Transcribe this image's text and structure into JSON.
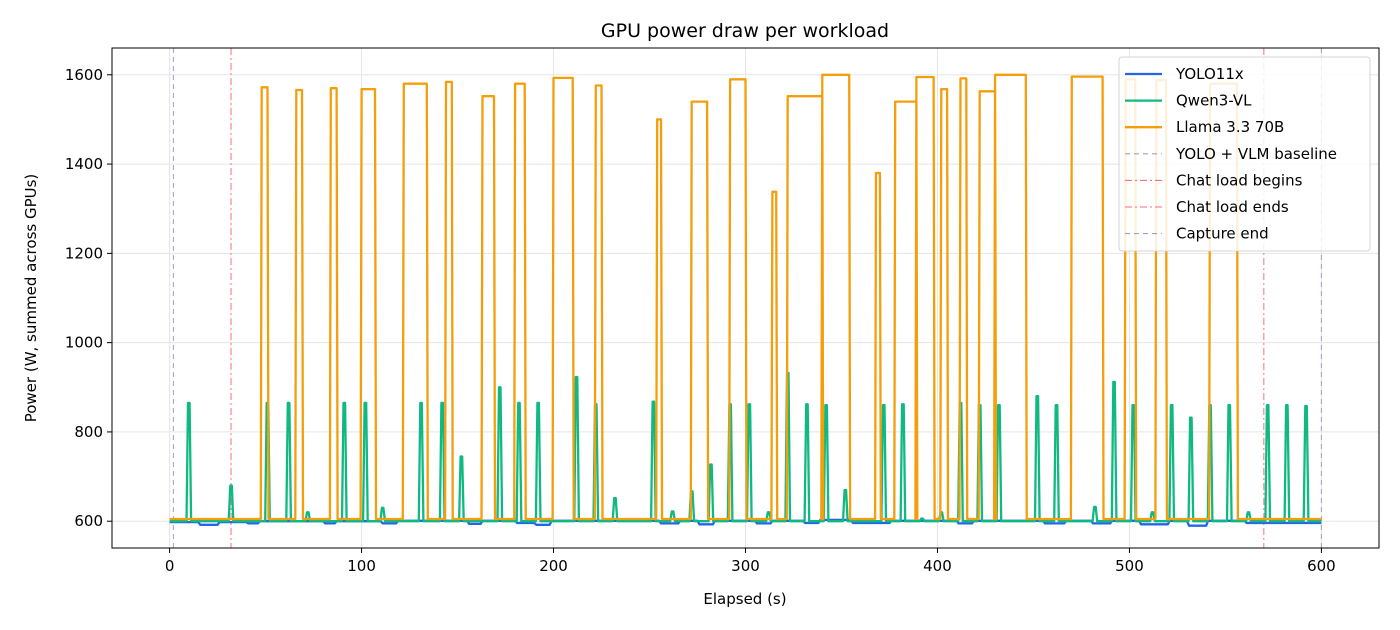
{
  "chart_data": {
    "type": "line",
    "title": "GPU power draw per workload",
    "xlabel": "Elapsed (s)",
    "ylabel": "Power (W, summed across GPUs)",
    "xlim": [
      -30,
      630
    ],
    "ylim": [
      540,
      1660
    ],
    "xticks": [
      0,
      100,
      200,
      300,
      400,
      500,
      600
    ],
    "yticks": [
      600,
      800,
      1000,
      1200,
      1400,
      1600
    ],
    "grid": true,
    "legend_position": "top-right",
    "series": [
      {
        "name": "YOLO11x",
        "color": "#2563eb",
        "baseline": 598,
        "points": [
          [
            0,
            598
          ],
          [
            15,
            598
          ],
          [
            16,
            592
          ],
          [
            25,
            592
          ],
          [
            26,
            598
          ],
          [
            40,
            598
          ],
          [
            41,
            595
          ],
          [
            46,
            595
          ],
          [
            47,
            600
          ],
          [
            80,
            600
          ],
          [
            81,
            595
          ],
          [
            86,
            595
          ],
          [
            87,
            600
          ],
          [
            110,
            600
          ],
          [
            111,
            595
          ],
          [
            118,
            595
          ],
          [
            119,
            601
          ],
          [
            155,
            601
          ],
          [
            156,
            594
          ],
          [
            162,
            594
          ],
          [
            163,
            601
          ],
          [
            180,
            601
          ],
          [
            181,
            596
          ],
          [
            190,
            596
          ],
          [
            191,
            592
          ],
          [
            198,
            592
          ],
          [
            199,
            601
          ],
          [
            255,
            601
          ],
          [
            256,
            595
          ],
          [
            265,
            595
          ],
          [
            266,
            601
          ],
          [
            275,
            601
          ],
          [
            276,
            593
          ],
          [
            283,
            593
          ],
          [
            284,
            601
          ],
          [
            305,
            601
          ],
          [
            306,
            595
          ],
          [
            313,
            595
          ],
          [
            314,
            601
          ],
          [
            330,
            601
          ],
          [
            331,
            596
          ],
          [
            338,
            596
          ],
          [
            339,
            603
          ],
          [
            355,
            603
          ],
          [
            356,
            596
          ],
          [
            362,
            596
          ],
          [
            363,
            596
          ],
          [
            375,
            596
          ],
          [
            376,
            601
          ],
          [
            410,
            601
          ],
          [
            411,
            595
          ],
          [
            418,
            595
          ],
          [
            419,
            601
          ],
          [
            455,
            601
          ],
          [
            456,
            595
          ],
          [
            466,
            595
          ],
          [
            467,
            601
          ],
          [
            480,
            601
          ],
          [
            481,
            595
          ],
          [
            490,
            595
          ],
          [
            491,
            601
          ],
          [
            505,
            601
          ],
          [
            506,
            593
          ],
          [
            520,
            593
          ],
          [
            521,
            601
          ],
          [
            530,
            601
          ],
          [
            531,
            590
          ],
          [
            540,
            590
          ],
          [
            541,
            601
          ],
          [
            560,
            601
          ],
          [
            561,
            596
          ],
          [
            600,
            596
          ]
        ]
      },
      {
        "name": "Qwen3-VL",
        "color": "#10b981",
        "baseline": 600,
        "spikes": [
          [
            10,
            865
          ],
          [
            32,
            680
          ],
          [
            51,
            865
          ],
          [
            62,
            865
          ],
          [
            72,
            620
          ],
          [
            91,
            865
          ],
          [
            102,
            865
          ],
          [
            111,
            630
          ],
          [
            131,
            865
          ],
          [
            142,
            865
          ],
          [
            152,
            745
          ],
          [
            172,
            900
          ],
          [
            182,
            865
          ],
          [
            192,
            865
          ],
          [
            212,
            923
          ],
          [
            222,
            862
          ],
          [
            232,
            652
          ],
          [
            252,
            868
          ],
          [
            262,
            622
          ],
          [
            272,
            667
          ],
          [
            282,
            727
          ],
          [
            292,
            862
          ],
          [
            302,
            862
          ],
          [
            312,
            620
          ],
          [
            322,
            932
          ],
          [
            332,
            862
          ],
          [
            342,
            860
          ],
          [
            352,
            670
          ],
          [
            372,
            860
          ],
          [
            382,
            862
          ],
          [
            392,
            606
          ],
          [
            402,
            620
          ],
          [
            412,
            865
          ],
          [
            422,
            860
          ],
          [
            432,
            860
          ],
          [
            452,
            880
          ],
          [
            462,
            860
          ],
          [
            482,
            632
          ],
          [
            492,
            912
          ],
          [
            502,
            860
          ],
          [
            512,
            620
          ],
          [
            522,
            860
          ],
          [
            532,
            832
          ],
          [
            542,
            860
          ],
          [
            552,
            860
          ],
          [
            562,
            620
          ],
          [
            572,
            860
          ],
          [
            582,
            860
          ],
          [
            592,
            858
          ]
        ]
      },
      {
        "name": "Llama 3.3 70B",
        "color": "#f59e0b",
        "baseline": 605,
        "pulses": [
          [
            48,
            51,
            1572
          ],
          [
            66,
            69,
            1566
          ],
          [
            84,
            87,
            1570
          ],
          [
            100,
            107,
            1568
          ],
          [
            122,
            134,
            1580
          ],
          [
            144,
            147,
            1584
          ],
          [
            163,
            169,
            1552
          ],
          [
            180,
            185,
            1580
          ],
          [
            200,
            210,
            1593
          ],
          [
            222,
            225,
            1576
          ],
          [
            254,
            256,
            1500
          ],
          [
            272,
            280,
            1540
          ],
          [
            292,
            300,
            1590
          ],
          [
            314,
            316,
            1338
          ],
          [
            322,
            340,
            1552
          ],
          [
            340,
            354,
            1600
          ],
          [
            368,
            370,
            1380
          ],
          [
            378,
            389,
            1540
          ],
          [
            389,
            398,
            1595
          ],
          [
            402,
            405,
            1568
          ],
          [
            412,
            415,
            1592
          ],
          [
            422,
            430,
            1563
          ],
          [
            430,
            446,
            1600
          ],
          [
            470,
            486,
            1596
          ],
          [
            498,
            503,
            1590
          ],
          [
            514,
            519,
            1588
          ],
          [
            542,
            556,
            1580
          ]
        ]
      }
    ],
    "vlines": [
      {
        "name": "YOLO + VLM baseline",
        "x": 2,
        "color": "#9ca3c0",
        "style": "dashed"
      },
      {
        "name": "Chat load begins",
        "x": 32,
        "color": "#f87171",
        "style": "dashdot"
      },
      {
        "name": "Chat load ends",
        "x": 570,
        "color": "#f87171",
        "style": "dashdot"
      },
      {
        "name": "Capture end",
        "x": 600,
        "color": "#9ca3c0",
        "style": "dashed"
      }
    ]
  }
}
